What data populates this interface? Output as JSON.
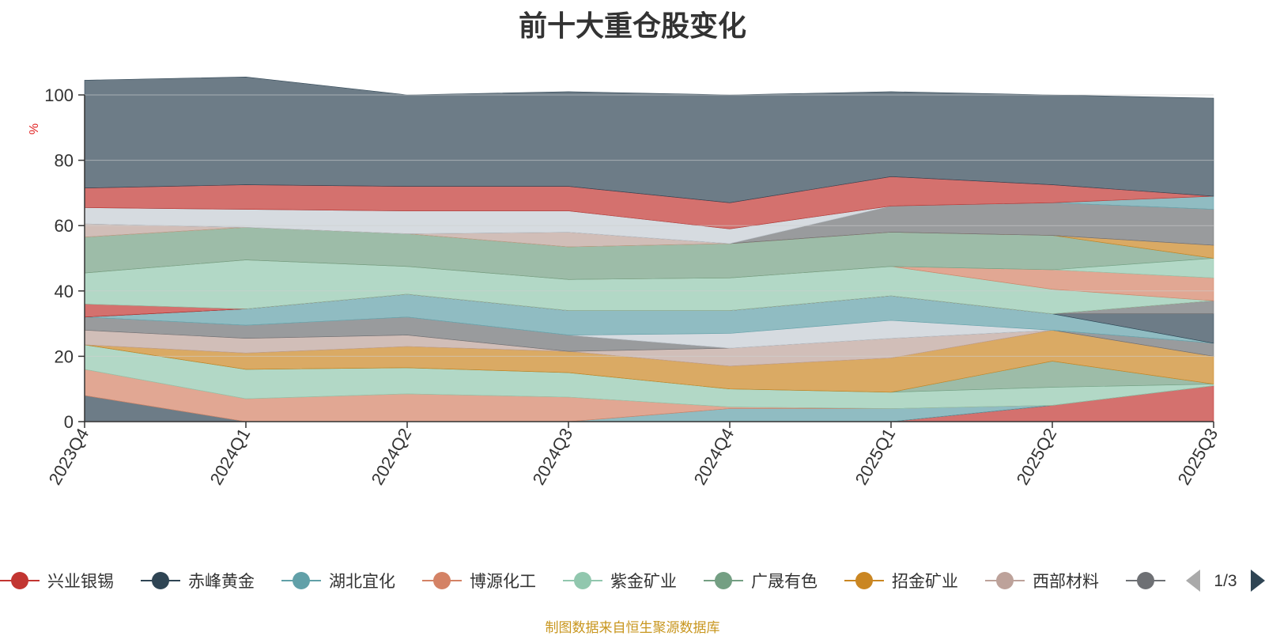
{
  "chart_data": {
    "type": "area",
    "stacked": true,
    "title": "前十大重仓股变化",
    "ylabel": "%",
    "ylim": [
      0,
      100
    ],
    "yticks": [
      "0",
      "20",
      "40",
      "60",
      "80",
      "100"
    ],
    "categories": [
      "2023Q4",
      "2024Q1",
      "2024Q2",
      "2024Q3",
      "2024Q4",
      "2025Q1",
      "2025Q2",
      "2025Q3"
    ],
    "series": [
      {
        "name": "兴业银锡",
        "color": "#c23531",
        "values": [
          0,
          0,
          0,
          0,
          0,
          0,
          5,
          11
        ]
      },
      {
        "name": "赤峰黄金",
        "color": "#2f4554",
        "values": [
          8,
          0,
          0,
          0,
          0,
          0,
          0,
          0
        ]
      },
      {
        "name": "湖北宜化",
        "color": "#61a0a8",
        "values": [
          0,
          0,
          0,
          0,
          4,
          4,
          0,
          0
        ]
      },
      {
        "name": "博源化工",
        "color": "#d48265",
        "values": [
          8,
          7,
          8.5,
          7.5,
          0.5,
          0,
          0,
          0
        ]
      },
      {
        "name": "紫金矿业",
        "color": "#91c7ae",
        "values": [
          7.5,
          9,
          8,
          7.5,
          5.5,
          5,
          5.5,
          0.5
        ]
      },
      {
        "name": "广晟有色",
        "color": "#749f83",
        "values": [
          0,
          0,
          0,
          0,
          0,
          0,
          8,
          0
        ]
      },
      {
        "name": "招金矿业",
        "color": "#ca8622",
        "values": [
          0,
          5,
          6.5,
          6.5,
          7,
          10.5,
          9.5,
          8.5
        ]
      },
      {
        "name": "西部材料",
        "color": "#bda29a",
        "values": [
          4.5,
          4.5,
          3.5,
          0,
          5.5,
          6,
          0,
          0
        ]
      },
      {
        "name": "",
        "color": "#6e7074",
        "values": [
          4,
          4,
          5.5,
          5,
          0,
          0,
          0,
          4
        ]
      },
      {
        "name": "",
        "color": "#c4ccd3",
        "values": [
          0,
          0,
          0,
          0,
          4.5,
          5.5,
          0,
          0
        ]
      },
      {
        "name": "",
        "color": "#61a0a8",
        "values": [
          0,
          5,
          7,
          7.5,
          7,
          7.5,
          5,
          0
        ]
      },
      {
        "name": "",
        "color": "#2f4554",
        "values": [
          0,
          0,
          0,
          0,
          0,
          0,
          0,
          9
        ]
      },
      {
        "name": "",
        "color": "#6e7074",
        "values": [
          0,
          0,
          0,
          0,
          0,
          0,
          0,
          4
        ]
      },
      {
        "name": "",
        "color": "#c23531",
        "values": [
          4,
          0,
          0,
          0,
          0,
          0,
          0,
          0
        ]
      },
      {
        "name": "",
        "color": "#91c7ae",
        "values": [
          9.5,
          15,
          8.5,
          9.5,
          10,
          9,
          7.5,
          0
        ]
      },
      {
        "name": "",
        "color": "#d48265",
        "values": [
          0,
          0,
          0,
          0,
          0,
          0,
          6,
          7
        ]
      },
      {
        "name": "",
        "color": "#91c7ae",
        "values": [
          0,
          0,
          0,
          0,
          0,
          0,
          0,
          6
        ]
      },
      {
        "name": "",
        "color": "#749f83",
        "values": [
          11,
          10,
          10,
          10,
          10.5,
          10.5,
          10.5,
          0
        ]
      },
      {
        "name": "",
        "color": "#ca8622",
        "values": [
          0,
          0,
          0,
          0,
          0,
          0,
          0,
          4
        ]
      },
      {
        "name": "",
        "color": "#bda29a",
        "values": [
          4,
          0,
          0,
          4.5,
          0,
          0,
          0,
          0
        ]
      },
      {
        "name": "",
        "color": "#6e7074",
        "values": [
          0,
          0,
          0,
          0,
          0,
          8,
          10,
          11
        ]
      },
      {
        "name": "",
        "color": "#c4ccd3",
        "values": [
          5,
          5.5,
          7,
          6.5,
          4.5,
          0,
          0,
          0
        ]
      },
      {
        "name": "",
        "color": "#61a0a8",
        "values": [
          0,
          0,
          0,
          0,
          0,
          0,
          0,
          4
        ]
      },
      {
        "name": "",
        "color": "#c23531",
        "values": [
          6,
          7.5,
          7.5,
          7.5,
          8,
          9,
          5.5,
          0
        ]
      },
      {
        "name": "",
        "color": "#2f4554",
        "values": [
          33,
          33,
          28,
          29,
          33,
          26,
          27.5,
          30
        ]
      }
    ],
    "legend": {
      "position": "bottom",
      "items": [
        {
          "name": "兴业银锡",
          "color": "#c23531"
        },
        {
          "name": "赤峰黄金",
          "color": "#2f4554"
        },
        {
          "name": "湖北宜化",
          "color": "#61a0a8"
        },
        {
          "name": "博源化工",
          "color": "#d48265"
        },
        {
          "name": "紫金矿业",
          "color": "#91c7ae"
        },
        {
          "name": "广晟有色",
          "color": "#749f83"
        },
        {
          "name": "招金矿业",
          "color": "#ca8622"
        },
        {
          "name": "西部材料",
          "color": "#bda29a"
        },
        {
          "name": "",
          "color": "#6e7074"
        }
      ],
      "page": "1/3"
    },
    "grid": true,
    "source_note": "制图数据来自恒生聚源数据库"
  },
  "ui": {
    "legend_prev_icon": "triangle-left-icon",
    "legend_next_icon": "triangle-right-icon",
    "axis_color": "#333333",
    "ylabel_color": "#e02020",
    "grid_color": "#d0d0d0",
    "area_opacity": 0.7
  }
}
